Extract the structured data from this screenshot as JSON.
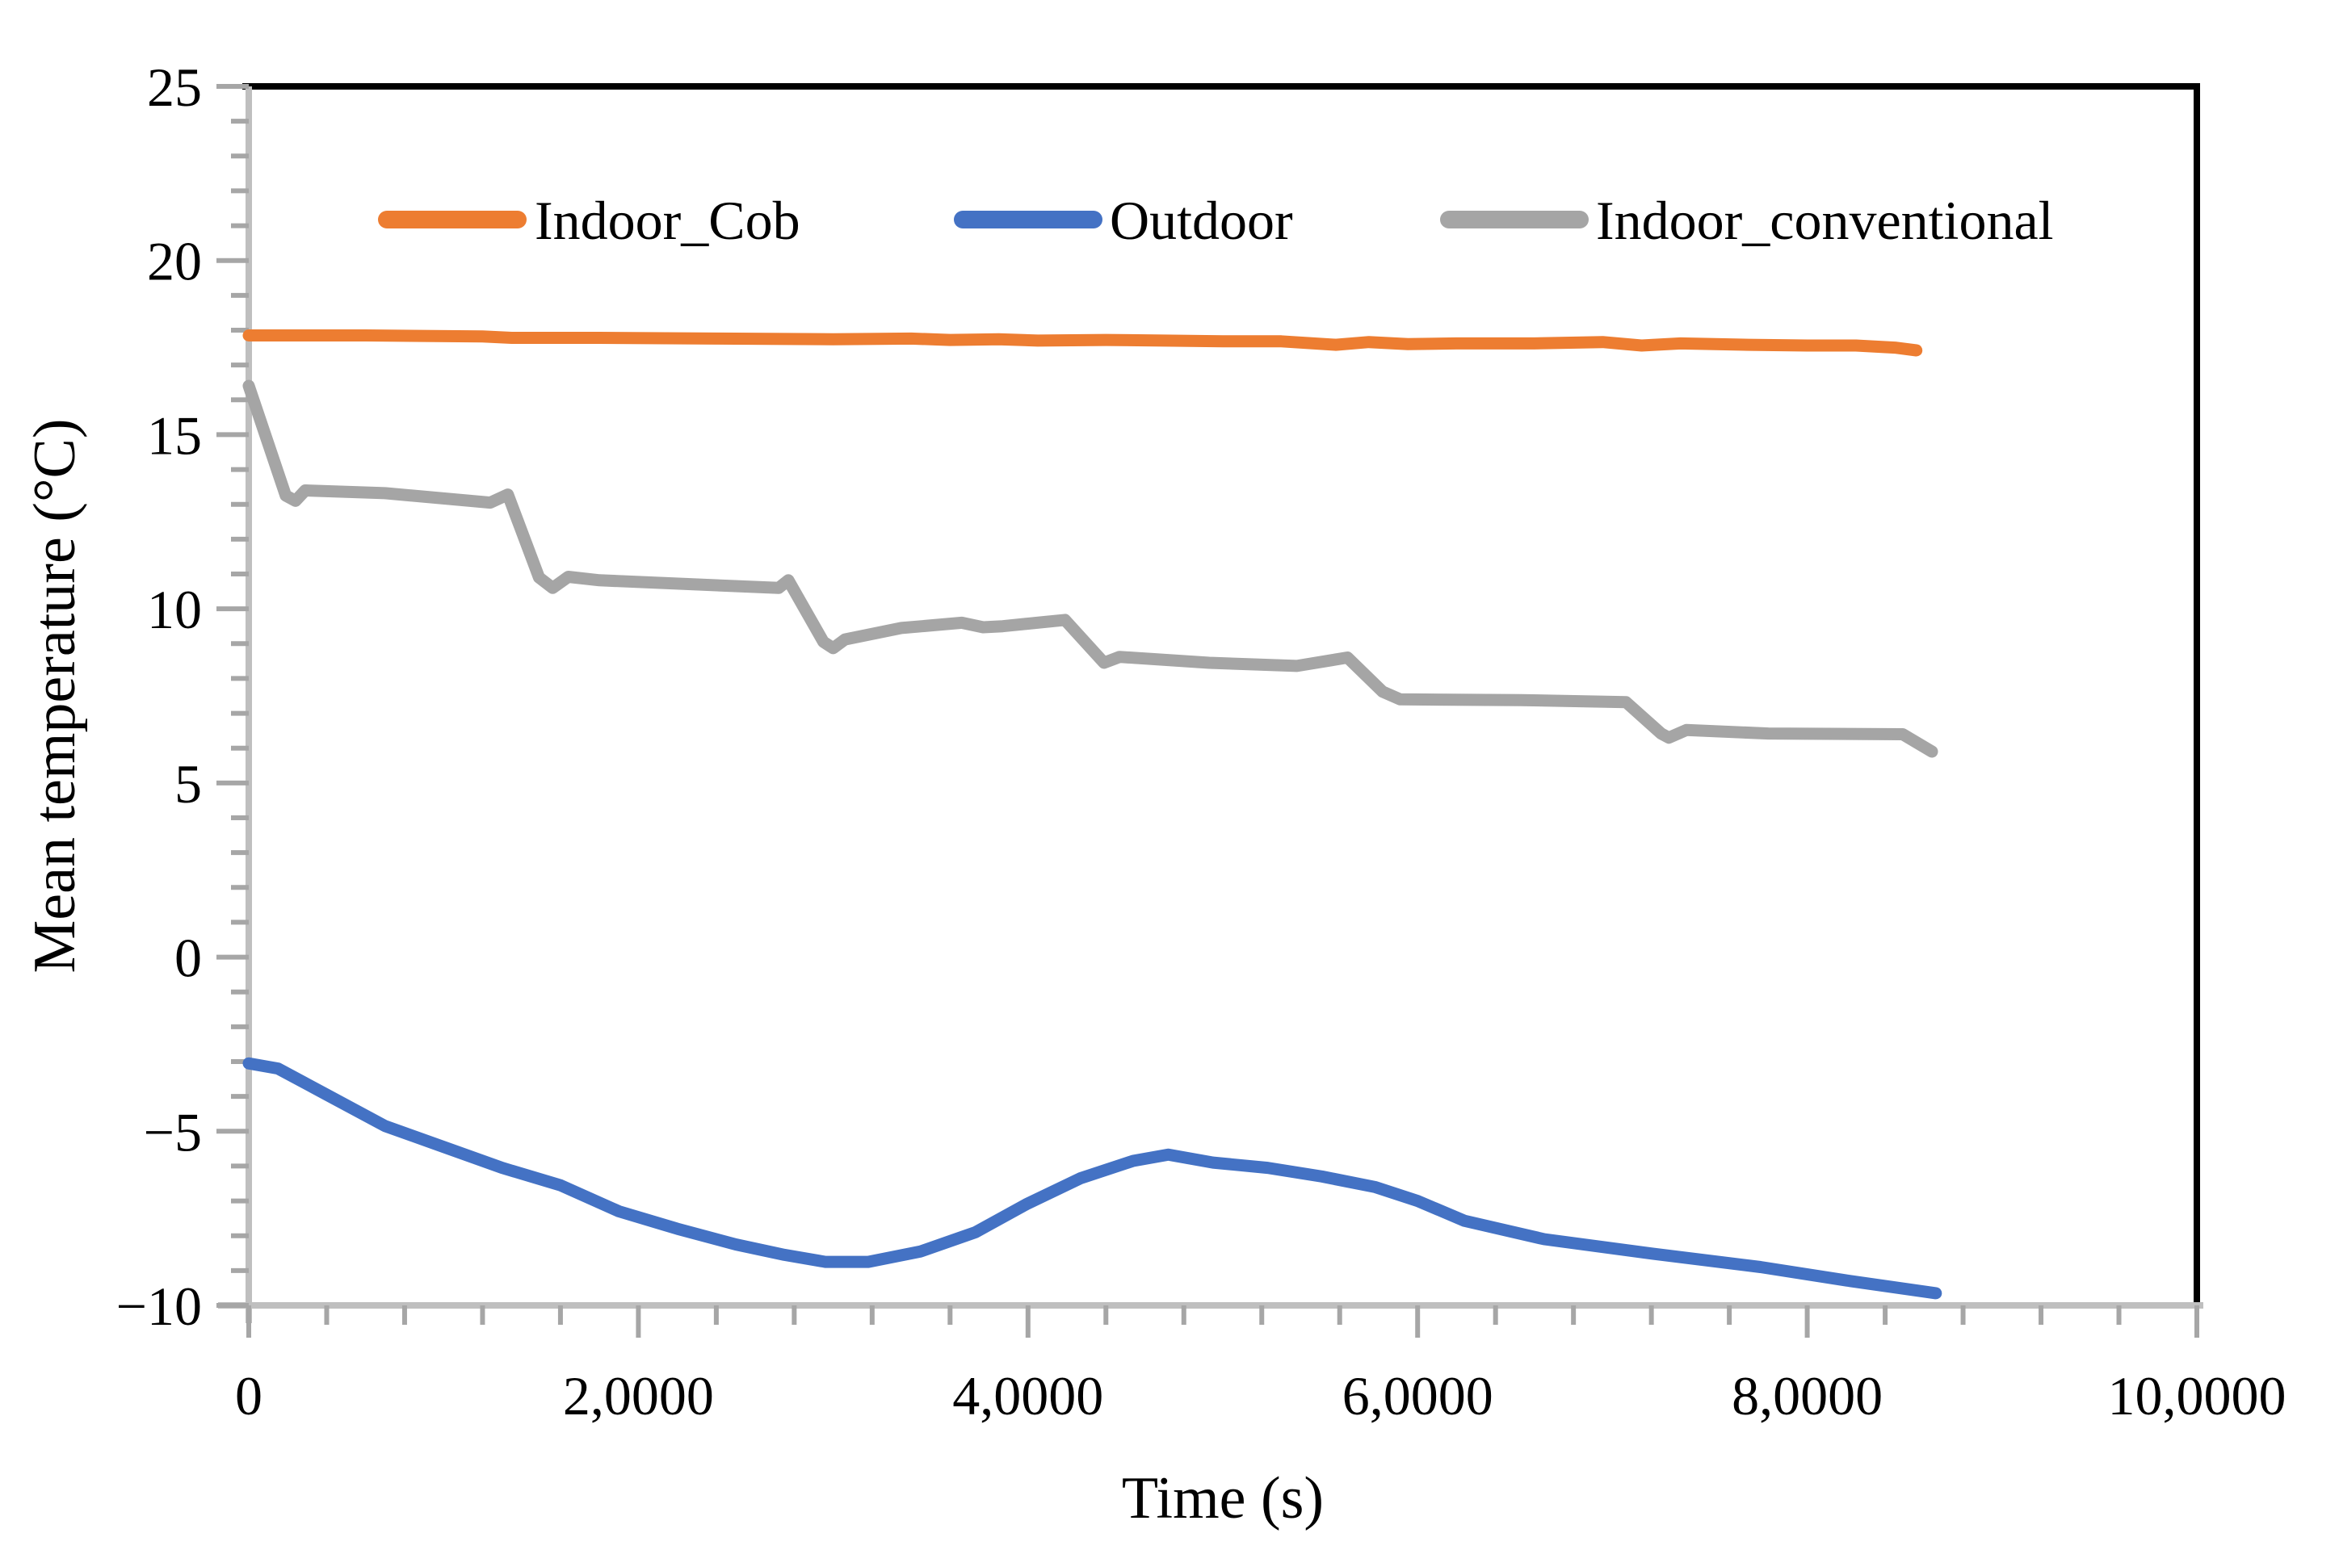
{
  "figure": {
    "background": "#ffffff",
    "border_color": "#000000",
    "axis_line_color": "#bfbfbf",
    "tick_color": "#a6a6a6"
  },
  "legend": {
    "items": [
      {
        "label": "Indoor_Cob",
        "color": "#ED7D31"
      },
      {
        "label": "Outdoor",
        "color": "#4472C4"
      },
      {
        "label": "Indoor_conventional",
        "color": "#A5A5A5"
      }
    ]
  },
  "chart_data": {
    "type": "line",
    "title": "",
    "x_title": "Time (s)",
    "y_title": "Mean temperature (°C)",
    "x_range": [
      0,
      100000
    ],
    "y_range": [
      -10,
      25
    ],
    "x_major_step": 20000,
    "x_minor_step": 4000,
    "y_major_step": 5,
    "y_minor_step": 1,
    "grid": false,
    "legend_position": "top",
    "x_tick_labels": [
      "0",
      "2,0000",
      "4,0000",
      "6,0000",
      "8,0000",
      "10,0000"
    ],
    "y_tick_labels": [
      "25",
      "20",
      "15",
      "10",
      "5",
      "0",
      "−5",
      "−10"
    ],
    "series": [
      {
        "name": "Indoor_conventional",
        "color": "#A5A5A5",
        "points": [
          [
            0,
            16.4
          ],
          [
            1900,
            13.25
          ],
          [
            2400,
            13.1
          ],
          [
            2900,
            13.4
          ],
          [
            7000,
            13.32
          ],
          [
            12400,
            13.05
          ],
          [
            13300,
            13.28
          ],
          [
            14900,
            10.9
          ],
          [
            15600,
            10.6
          ],
          [
            16400,
            10.92
          ],
          [
            18000,
            10.82
          ],
          [
            27200,
            10.6
          ],
          [
            27700,
            10.82
          ],
          [
            29500,
            9.05
          ],
          [
            30000,
            8.87
          ],
          [
            30600,
            9.12
          ],
          [
            33500,
            9.45
          ],
          [
            36600,
            9.6
          ],
          [
            37700,
            9.47
          ],
          [
            38700,
            9.5
          ],
          [
            41900,
            9.68
          ],
          [
            43900,
            8.45
          ],
          [
            44700,
            8.62
          ],
          [
            49300,
            8.45
          ],
          [
            53800,
            8.36
          ],
          [
            56400,
            8.6
          ],
          [
            58200,
            7.62
          ],
          [
            59100,
            7.4
          ],
          [
            65300,
            7.38
          ],
          [
            70700,
            7.32
          ],
          [
            72500,
            6.42
          ],
          [
            72900,
            6.3
          ],
          [
            73800,
            6.52
          ],
          [
            78000,
            6.42
          ],
          [
            84900,
            6.4
          ],
          [
            86400,
            5.9
          ]
        ]
      },
      {
        "name": "Outdoor",
        "color": "#4472C4",
        "points": [
          [
            0,
            -3.05
          ],
          [
            1500,
            -3.2
          ],
          [
            4000,
            -3.95
          ],
          [
            7000,
            -4.85
          ],
          [
            10000,
            -5.45
          ],
          [
            13000,
            -6.05
          ],
          [
            16000,
            -6.55
          ],
          [
            19000,
            -7.3
          ],
          [
            22000,
            -7.8
          ],
          [
            25000,
            -8.25
          ],
          [
            27500,
            -8.55
          ],
          [
            29600,
            -8.75
          ],
          [
            31800,
            -8.75
          ],
          [
            34500,
            -8.45
          ],
          [
            37300,
            -7.9
          ],
          [
            39900,
            -7.1
          ],
          [
            42700,
            -6.35
          ],
          [
            45400,
            -5.85
          ],
          [
            47200,
            -5.67
          ],
          [
            49500,
            -5.9
          ],
          [
            52300,
            -6.05
          ],
          [
            55100,
            -6.3
          ],
          [
            57800,
            -6.6
          ],
          [
            60000,
            -7.0
          ],
          [
            62400,
            -7.57
          ],
          [
            66500,
            -8.1
          ],
          [
            72100,
            -8.52
          ],
          [
            77600,
            -8.9
          ],
          [
            82200,
            -9.3
          ],
          [
            86600,
            -9.65
          ]
        ]
      },
      {
        "name": "Indoor_Cob",
        "color": "#ED7D31",
        "points": [
          [
            0,
            17.85
          ],
          [
            6000,
            17.85
          ],
          [
            12000,
            17.82
          ],
          [
            13500,
            17.78
          ],
          [
            18000,
            17.78
          ],
          [
            24000,
            17.76
          ],
          [
            30000,
            17.74
          ],
          [
            34000,
            17.76
          ],
          [
            36000,
            17.72
          ],
          [
            38500,
            17.74
          ],
          [
            40500,
            17.7
          ],
          [
            44000,
            17.72
          ],
          [
            47000,
            17.7
          ],
          [
            50000,
            17.68
          ],
          [
            53000,
            17.68
          ],
          [
            55800,
            17.58
          ],
          [
            57500,
            17.66
          ],
          [
            59500,
            17.6
          ],
          [
            62000,
            17.62
          ],
          [
            66000,
            17.62
          ],
          [
            69500,
            17.66
          ],
          [
            71500,
            17.56
          ],
          [
            73500,
            17.62
          ],
          [
            77000,
            17.58
          ],
          [
            80000,
            17.56
          ],
          [
            82500,
            17.56
          ],
          [
            84500,
            17.5
          ],
          [
            85600,
            17.42
          ]
        ]
      }
    ]
  }
}
